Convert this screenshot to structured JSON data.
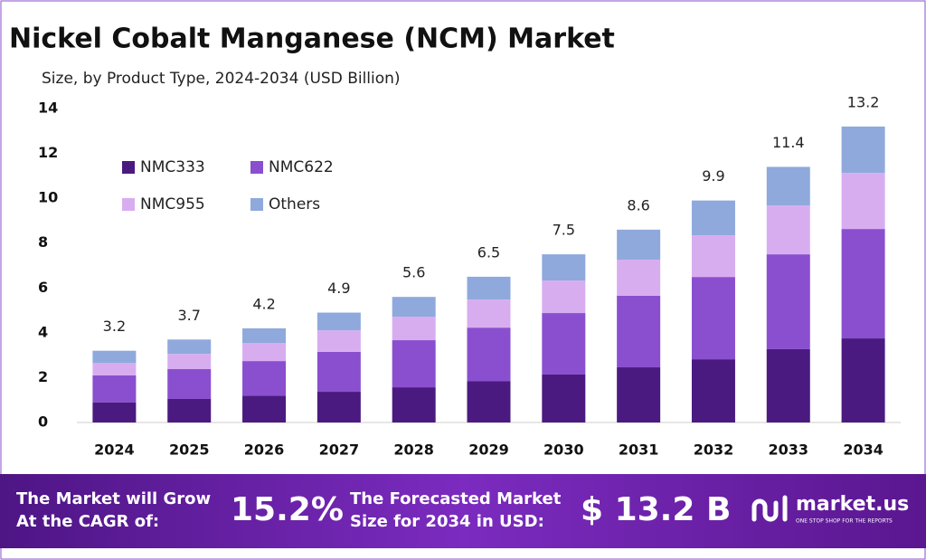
{
  "chart_data": {
    "type": "stacked_bar",
    "title": "Nickel Cobalt Manganese (NCM) Market",
    "subtitle": "Size, by Product Type, 2024-2034 (USD Billion)",
    "categories": [
      "2024",
      "2025",
      "2026",
      "2027",
      "2028",
      "2029",
      "2030",
      "2031",
      "2032",
      "2033",
      "2034"
    ],
    "series": [
      {
        "name": "NMC333",
        "color": "#4b1a80",
        "values": [
          0.9,
          1.05,
          1.2,
          1.37,
          1.57,
          1.85,
          2.14,
          2.46,
          2.82,
          3.27,
          3.75
        ]
      },
      {
        "name": "NMC622",
        "color": "#8a4fcf",
        "values": [
          1.2,
          1.33,
          1.54,
          1.78,
          2.1,
          2.38,
          2.74,
          3.19,
          3.67,
          4.23,
          4.88
        ]
      },
      {
        "name": "NMC955",
        "color": "#d8adf0",
        "values": [
          0.55,
          0.68,
          0.81,
          0.96,
          1.05,
          1.25,
          1.45,
          1.61,
          1.86,
          2.18,
          2.5
        ]
      },
      {
        "name": "Others",
        "color": "#8fa9dd",
        "values": [
          0.55,
          0.64,
          0.65,
          0.79,
          0.88,
          1.02,
          1.17,
          1.34,
          1.55,
          1.72,
          2.07
        ]
      }
    ],
    "totals": [
      3.2,
      3.7,
      4.2,
      4.9,
      5.6,
      6.5,
      7.5,
      8.6,
      9.9,
      11.4,
      13.2
    ],
    "ylim": [
      0,
      14
    ],
    "yticks": [
      0,
      2,
      4,
      6,
      8,
      10,
      12,
      14
    ],
    "grid": false,
    "legend": "upper left"
  },
  "footer": {
    "cagr_label": [
      "The Market will Grow",
      "At the CAGR of:"
    ],
    "cagr": "15.2%",
    "forecast_label": [
      "The Forecasted Market",
      "Size for 2034 in USD:"
    ],
    "forecast": "$ 13.2 B",
    "brand": "market.us",
    "tagline": "ONE STOP SHOP FOR THE REPORTS"
  }
}
